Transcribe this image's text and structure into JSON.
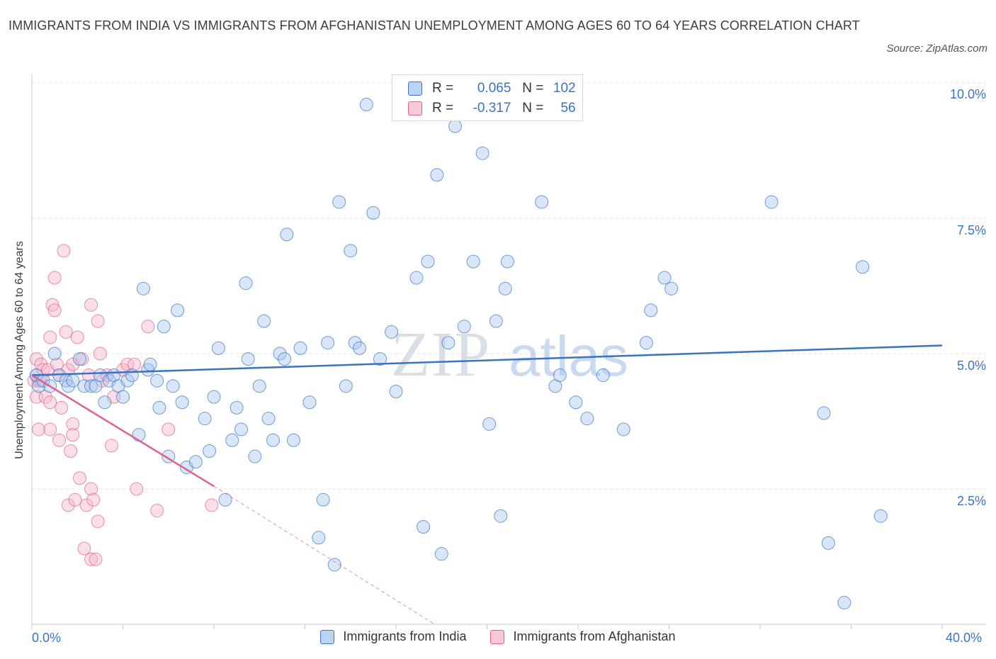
{
  "title": "IMMIGRANTS FROM INDIA VS IMMIGRANTS FROM AFGHANISTAN UNEMPLOYMENT AMONG AGES 60 TO 64 YEARS CORRELATION CHART",
  "source": "Source: ZipAtlas.com",
  "watermark": {
    "zip": "ZIP",
    "atlas": "atlas"
  },
  "legend_stats": [
    {
      "r_label": "R =",
      "r_value": "0.065",
      "n_label": "N =",
      "n_value": "102",
      "color": "#a9c8f0"
    },
    {
      "r_label": "R =",
      "r_value": "-0.317",
      "n_label": "N =",
      "n_value": "56",
      "color": "#f5b8cb"
    }
  ],
  "chart_data": {
    "type": "scatter",
    "title": "IMMIGRANTS FROM INDIA VS IMMIGRANTS FROM AFGHANISTAN UNEMPLOYMENT AMONG AGES 60 TO 64 YEARS CORRELATION CHART",
    "xlabel": "",
    "ylabel": "Unemployment Among Ages 60 to 64 years",
    "xlim": [
      0,
      40
    ],
    "ylim": [
      0,
      10
    ],
    "x_tick_labels": [
      "0.0%",
      "40.0%"
    ],
    "y_ticks": [
      2.5,
      5.0,
      7.5,
      10.0
    ],
    "y_tick_labels": [
      "2.5%",
      "5.0%",
      "7.5%",
      "10.0%"
    ],
    "grid": true,
    "legend_position": "bottom",
    "colors": {
      "india": "#3b73c4",
      "india_fill": "#a9c8f0",
      "afghanistan": "#e0608f",
      "afghanistan_fill": "#f5b8cb"
    },
    "series": [
      {
        "name": "Immigrants from India",
        "color": "#3b73c4",
        "points": [
          [
            0.2,
            4.6
          ],
          [
            0.3,
            4.4
          ],
          [
            0.5,
            4.5
          ],
          [
            0.8,
            4.4
          ],
          [
            1.0,
            5.0
          ],
          [
            1.2,
            4.6
          ],
          [
            1.5,
            4.5
          ],
          [
            1.6,
            4.4
          ],
          [
            1.8,
            4.5
          ],
          [
            2.1,
            4.9
          ],
          [
            2.3,
            4.4
          ],
          [
            2.6,
            4.4
          ],
          [
            2.8,
            4.4
          ],
          [
            3.0,
            4.6
          ],
          [
            3.2,
            4.1
          ],
          [
            3.4,
            4.5
          ],
          [
            3.6,
            4.6
          ],
          [
            3.8,
            4.4
          ],
          [
            4.0,
            4.2
          ],
          [
            4.2,
            4.5
          ],
          [
            4.4,
            4.6
          ],
          [
            4.7,
            3.5
          ],
          [
            4.9,
            6.2
          ],
          [
            5.1,
            4.7
          ],
          [
            5.2,
            4.8
          ],
          [
            5.5,
            4.5
          ],
          [
            5.6,
            4.0
          ],
          [
            5.8,
            5.5
          ],
          [
            6.0,
            3.1
          ],
          [
            6.2,
            4.4
          ],
          [
            6.4,
            5.8
          ],
          [
            6.6,
            4.1
          ],
          [
            6.8,
            2.9
          ],
          [
            7.2,
            3.0
          ],
          [
            7.6,
            3.8
          ],
          [
            7.8,
            3.2
          ],
          [
            8.0,
            4.2
          ],
          [
            8.2,
            5.1
          ],
          [
            8.5,
            2.3
          ],
          [
            8.8,
            3.4
          ],
          [
            9.0,
            4.0
          ],
          [
            9.2,
            3.6
          ],
          [
            9.4,
            6.3
          ],
          [
            9.5,
            4.9
          ],
          [
            9.8,
            3.1
          ],
          [
            10.0,
            4.4
          ],
          [
            10.2,
            5.6
          ],
          [
            10.4,
            3.8
          ],
          [
            10.6,
            3.4
          ],
          [
            10.9,
            5.0
          ],
          [
            11.1,
            4.9
          ],
          [
            11.2,
            7.2
          ],
          [
            11.5,
            3.4
          ],
          [
            11.8,
            5.1
          ],
          [
            12.2,
            4.1
          ],
          [
            12.6,
            1.6
          ],
          [
            12.8,
            2.3
          ],
          [
            13.0,
            5.2
          ],
          [
            13.3,
            1.1
          ],
          [
            13.5,
            7.8
          ],
          [
            13.8,
            4.4
          ],
          [
            14.0,
            6.9
          ],
          [
            14.2,
            5.2
          ],
          [
            14.4,
            5.1
          ],
          [
            14.7,
            9.6
          ],
          [
            15.0,
            7.6
          ],
          [
            15.3,
            4.9
          ],
          [
            15.8,
            5.4
          ],
          [
            16.0,
            4.3
          ],
          [
            16.2,
            9.9
          ],
          [
            16.9,
            6.4
          ],
          [
            17.2,
            1.8
          ],
          [
            17.4,
            6.7
          ],
          [
            17.8,
            8.3
          ],
          [
            18.0,
            1.3
          ],
          [
            18.3,
            5.2
          ],
          [
            18.6,
            9.2
          ],
          [
            19.0,
            5.5
          ],
          [
            19.4,
            6.7
          ],
          [
            19.8,
            8.7
          ],
          [
            20.1,
            3.7
          ],
          [
            20.4,
            5.6
          ],
          [
            20.6,
            2.0
          ],
          [
            20.8,
            6.2
          ],
          [
            20.9,
            6.7
          ],
          [
            22.4,
            7.8
          ],
          [
            23.0,
            4.4
          ],
          [
            23.2,
            4.6
          ],
          [
            23.9,
            4.1
          ],
          [
            24.4,
            3.8
          ],
          [
            25.1,
            4.6
          ],
          [
            26.0,
            3.6
          ],
          [
            27.0,
            5.2
          ],
          [
            27.2,
            5.8
          ],
          [
            27.8,
            6.4
          ],
          [
            28.1,
            6.2
          ],
          [
            32.5,
            7.8
          ],
          [
            34.8,
            3.9
          ],
          [
            35.0,
            1.5
          ],
          [
            35.7,
            0.4
          ],
          [
            36.5,
            6.6
          ],
          [
            37.3,
            2.0
          ]
        ],
        "trend": {
          "x": [
            0,
            40
          ],
          "y": [
            4.6,
            5.15
          ]
        }
      },
      {
        "name": "Immigrants from Afghanistan",
        "color": "#e0608f",
        "points": [
          [
            0.1,
            4.5
          ],
          [
            0.2,
            4.9
          ],
          [
            0.2,
            4.6
          ],
          [
            0.2,
            4.2
          ],
          [
            0.3,
            3.6
          ],
          [
            0.3,
            4.5
          ],
          [
            0.4,
            4.5
          ],
          [
            0.4,
            4.8
          ],
          [
            0.5,
            4.7
          ],
          [
            0.6,
            4.2
          ],
          [
            0.7,
            4.7
          ],
          [
            0.8,
            5.3
          ],
          [
            0.8,
            3.6
          ],
          [
            0.8,
            4.1
          ],
          [
            0.9,
            5.9
          ],
          [
            1.0,
            5.8
          ],
          [
            1.0,
            6.4
          ],
          [
            1.1,
            4.8
          ],
          [
            1.2,
            4.6
          ],
          [
            1.2,
            3.4
          ],
          [
            1.3,
            4.0
          ],
          [
            1.4,
            6.9
          ],
          [
            1.5,
            5.4
          ],
          [
            1.6,
            4.7
          ],
          [
            1.6,
            2.2
          ],
          [
            1.7,
            3.2
          ],
          [
            1.8,
            3.7
          ],
          [
            1.8,
            3.5
          ],
          [
            1.8,
            4.8
          ],
          [
            1.9,
            2.3
          ],
          [
            2.0,
            5.3
          ],
          [
            2.1,
            2.7
          ],
          [
            2.2,
            4.9
          ],
          [
            2.3,
            1.4
          ],
          [
            2.4,
            2.2
          ],
          [
            2.5,
            4.6
          ],
          [
            2.6,
            2.5
          ],
          [
            2.6,
            1.2
          ],
          [
            2.6,
            5.9
          ],
          [
            2.7,
            2.3
          ],
          [
            2.8,
            1.2
          ],
          [
            2.9,
            1.9
          ],
          [
            2.9,
            5.6
          ],
          [
            3.0,
            5.0
          ],
          [
            3.1,
            4.5
          ],
          [
            3.3,
            4.6
          ],
          [
            3.5,
            3.3
          ],
          [
            3.6,
            4.2
          ],
          [
            4.0,
            4.7
          ],
          [
            4.2,
            4.8
          ],
          [
            4.5,
            4.8
          ],
          [
            4.6,
            2.5
          ],
          [
            5.1,
            5.5
          ],
          [
            5.5,
            2.1
          ],
          [
            6.0,
            3.6
          ],
          [
            7.9,
            2.2
          ]
        ],
        "trend": {
          "x": [
            0,
            8.0
          ],
          "y": [
            4.6,
            2.55
          ]
        },
        "trend_extension": {
          "x": [
            8.0,
            17.7
          ],
          "y": [
            2.55,
            0.0
          ]
        }
      }
    ]
  }
}
